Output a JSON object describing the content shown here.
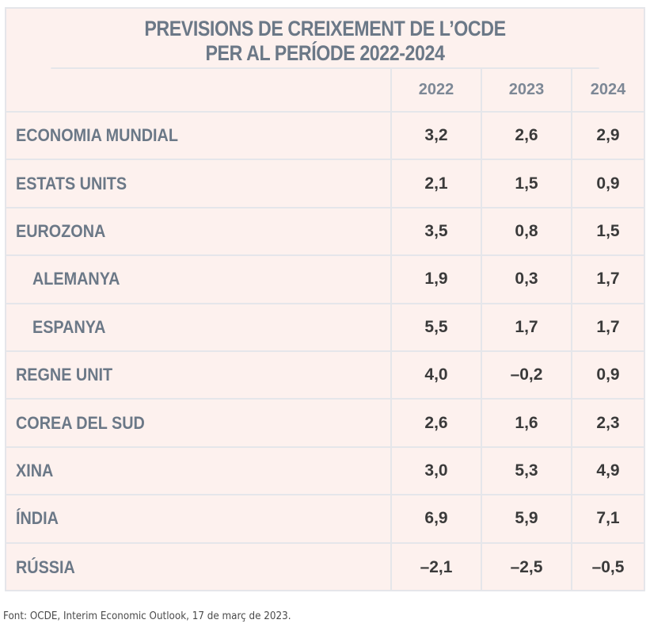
{
  "chart_data": {
    "type": "table",
    "title": "PREVISIONS DE CREIXEMENT DE L’OCDE PER AL PERÍODE 2022-2024",
    "title_lines": [
      "PREVISIONS DE CREIXEMENT DE L’OCDE",
      "PER AL PERÍODE 2022-2024"
    ],
    "columns": [
      "2022",
      "2023",
      "2024"
    ],
    "rows": [
      {
        "label": "ECONOMIA MUNDIAL",
        "values": [
          "3,2",
          "2,6",
          "2,9"
        ]
      },
      {
        "label": "ESTATS UNITS",
        "values": [
          "2,1",
          "1,5",
          "0,9"
        ]
      },
      {
        "label": "EUROZONA",
        "values": [
          "3,5",
          "0,8",
          "1,5"
        ]
      },
      {
        "label": "ALEMANYA",
        "values": [
          "1,9",
          "0,3",
          "1,7"
        ]
      },
      {
        "label": "ESPANYA",
        "values": [
          "5,5",
          "1,7",
          "1,7"
        ]
      },
      {
        "label": "REGNE UNIT",
        "values": [
          "4,0",
          "–0,2",
          "0,9"
        ]
      },
      {
        "label": "COREA DEL SUD",
        "values": [
          "2,6",
          "1,6",
          "2,3"
        ]
      },
      {
        "label": "XINA",
        "values": [
          "3,0",
          "5,3",
          "4,9"
        ]
      },
      {
        "label": "ÍNDIA",
        "values": [
          "6,9",
          "5,9",
          "7,1"
        ]
      },
      {
        "label": "RÚSSIA",
        "values": [
          "–2,1",
          "–2,5",
          "–0,5"
        ]
      }
    ],
    "source": "Font: OCDE, Interim Economic Outlook, 17 de març de 2023.",
    "colors": {
      "background": "#fdf1ee",
      "grid": "#e5e6ea",
      "label_text": "#6b7887",
      "value_text": "#3a3a3a"
    }
  }
}
